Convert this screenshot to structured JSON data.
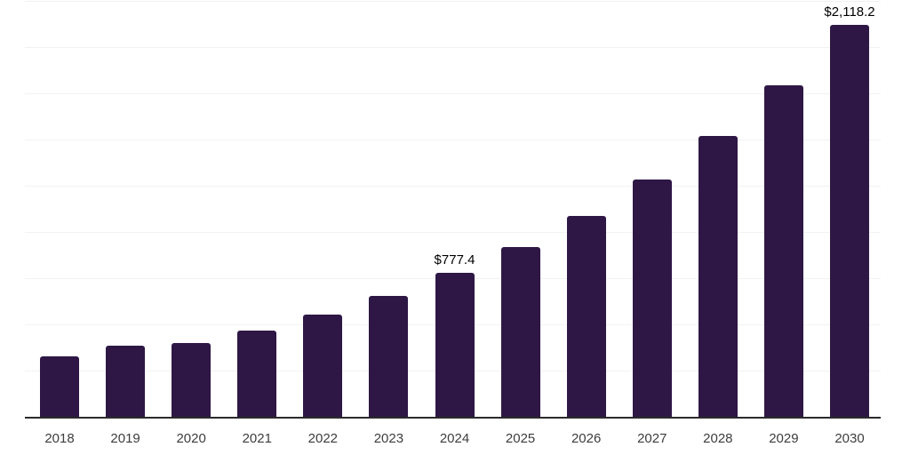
{
  "chart_data": {
    "type": "bar",
    "title": "",
    "xlabel": "",
    "ylabel": "",
    "categories": [
      "2018",
      "2019",
      "2020",
      "2021",
      "2022",
      "2023",
      "2024",
      "2025",
      "2026",
      "2027",
      "2028",
      "2029",
      "2030"
    ],
    "values": [
      327,
      387,
      397,
      466,
      553,
      654,
      777.4,
      919,
      1086,
      1283,
      1517,
      1793,
      2118.2
    ],
    "annotations": [
      {
        "category": "2024",
        "label": "$777.4"
      },
      {
        "category": "2030",
        "label": "$2,118.2"
      }
    ],
    "ylim": [
      0,
      2250
    ],
    "grid_step": 250,
    "grid": true,
    "legend": false,
    "y_tick_labels_visible": false
  },
  "colors": {
    "bar": "#2e1745",
    "grid": "#f2f2f2",
    "axis": "#2b2b2b",
    "tick_label": "#3d3d3d",
    "value_label": "#000000",
    "background": "#ffffff"
  }
}
